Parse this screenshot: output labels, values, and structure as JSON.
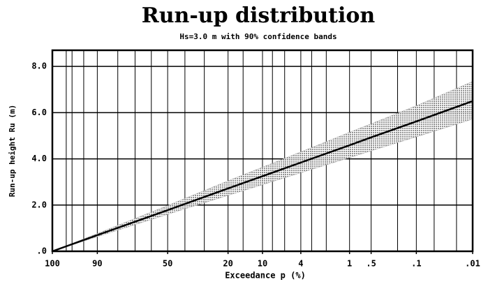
{
  "chart_data": {
    "type": "line",
    "title": "Run-up distribution",
    "subtitle": "Hs=3.0 m with 90% confidence bands",
    "xlabel": "Exceedance p (%)",
    "ylabel": "Run-up height Ru (m)",
    "xscale": "rayleigh",
    "x": [
      100,
      90,
      50,
      20,
      10,
      4,
      1,
      0.5,
      0.1,
      0.01
    ],
    "values": [
      0,
      0.7,
      1.78,
      2.72,
      3.25,
      3.84,
      4.59,
      4.93,
      5.62,
      6.5
    ],
    "lower": [
      0,
      0.63,
      1.6,
      2.42,
      2.88,
      3.4,
      4.05,
      4.35,
      4.95,
      5.72
    ],
    "upper": [
      0,
      0.77,
      1.98,
      3.05,
      3.64,
      4.3,
      5.15,
      5.52,
      6.3,
      7.35
    ],
    "color": "#000000",
    "band_color": "#9a9a9a",
    "xlim": [
      100,
      0.01
    ],
    "xticks": [
      100,
      90,
      50,
      20,
      10,
      4,
      1,
      {
        "value": 0.5,
        "label": ".5"
      },
      {
        "value": 0.1,
        "label": ".1"
      },
      {
        "value": 0.01,
        "label": ".01"
      }
    ],
    "xgrid": [
      99,
      98,
      95,
      90,
      80,
      70,
      60,
      50,
      40,
      30,
      20,
      15,
      10,
      8,
      6,
      4,
      3,
      2,
      1,
      0.5,
      0.2,
      0.1,
      0.05,
      0.02,
      0.01
    ],
    "ylim": [
      0,
      8.7
    ],
    "yticks": [
      {
        "value": 0,
        "label": ".0"
      },
      {
        "value": 2,
        "label": "2.0"
      },
      {
        "value": 4,
        "label": "4.0"
      },
      {
        "value": 6,
        "label": "6.0"
      },
      {
        "value": 8,
        "label": "8.0"
      }
    ],
    "grid": true
  }
}
